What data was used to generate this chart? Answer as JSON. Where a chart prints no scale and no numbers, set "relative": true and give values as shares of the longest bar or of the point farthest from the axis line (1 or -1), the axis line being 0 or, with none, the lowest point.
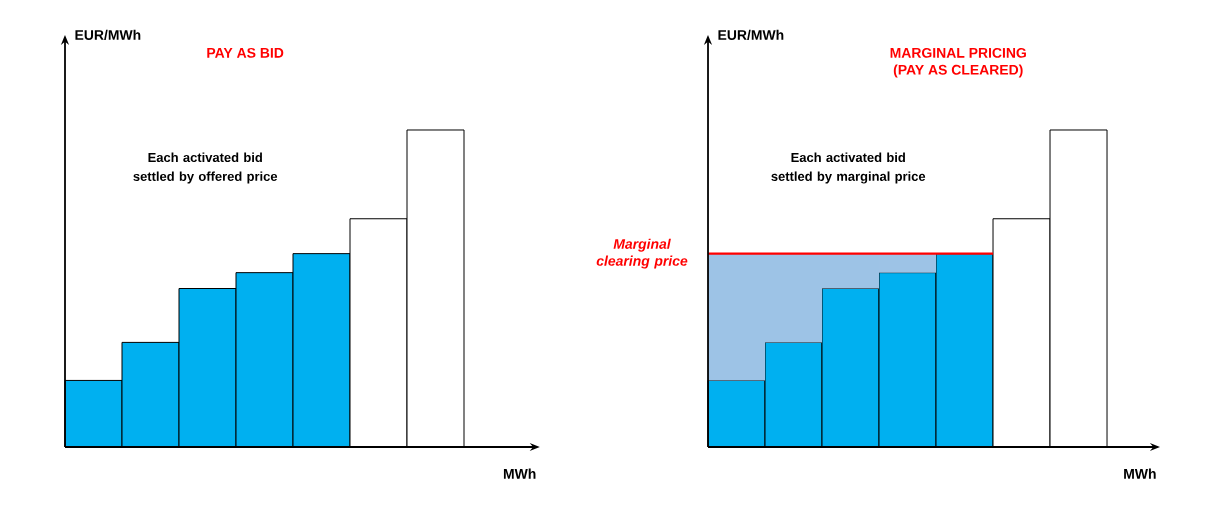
{
  "chart_data": [
    {
      "type": "bar",
      "title": "PAY AS BID",
      "xlabel": "MWh",
      "ylabel": "EUR/MWh",
      "annotations": [
        "Each activated bid settled by offered price"
      ],
      "categories": [
        null,
        null,
        null,
        null,
        null,
        null,
        null
      ],
      "relative": true,
      "series": [
        {
          "values": [
            0.21,
            0.33,
            0.5,
            0.55,
            0.61,
            0.72,
            1.0
          ],
          "colors": [
            "#00b0f0",
            "#00b0f0",
            "#00b0f0",
            "#00b0f0",
            "#00b0f0",
            "#ffffff",
            "#ffffff"
          ]
        }
      ]
    },
    {
      "type": "bar",
      "title": "MARGINAL PRICING",
      "subtitle": "(PAY AS CLEARED)",
      "xlabel": "MWh",
      "ylabel": "EUR/MWh",
      "annotations": [
        "Each activated bid settled by marginal price"
      ],
      "categories": [
        null,
        null,
        null,
        null,
        null,
        null,
        null
      ],
      "relative": true,
      "stacked": true,
      "series": [
        {
          "values": [
            0.21,
            0.33,
            0.5,
            0.55,
            0.61,
            0.72,
            1.0
          ],
          "colors": [
            "#00b0f0",
            "#00b0f0",
            "#00b0f0",
            "#00b0f0",
            "#00b0f0",
            "#ffffff",
            "#ffffff"
          ]
        },
        {
          "values": [
            0.4,
            0.28,
            0.11,
            0.06,
            0,
            null,
            null
          ],
          "color": "#9dc3e6"
        }
      ],
      "ref_lines": [
        {
          "axis": "y",
          "value": 0.61,
          "label": "Marginal clearing price",
          "color": "#ff0000"
        }
      ]
    }
  ]
}
